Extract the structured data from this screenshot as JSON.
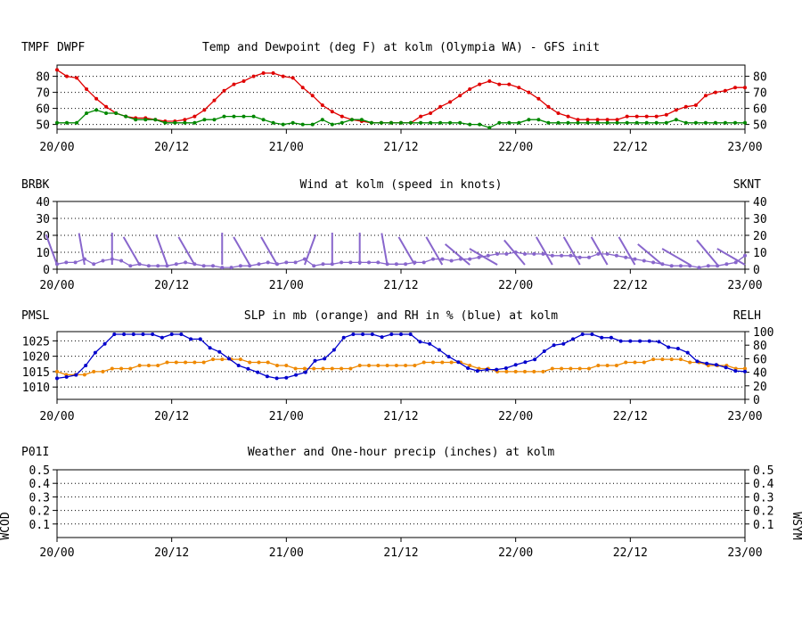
{
  "colors": {
    "temp": "#e00000",
    "dew": "#008800",
    "wind": "#8866cc",
    "pmsl": "#ee8800",
    "relh": "#0000cc",
    "precip": "#008800",
    "axis": "#000000"
  },
  "time_ticks": [
    "20/00",
    "20/12",
    "21/00",
    "21/12",
    "22/00",
    "22/12",
    "23/00"
  ],
  "chart_data": [
    {
      "type": "line",
      "title": "Temp and Dewpoint (deg F) at kolm  (Olympia WA) - GFS init",
      "left_labels": [
        "TMPF",
        "DWPF"
      ],
      "yticks": [
        50,
        60,
        70,
        80
      ],
      "ylim": [
        47,
        87
      ],
      "grid_y": [
        50,
        60,
        70,
        80
      ],
      "series": [
        {
          "name": "TMPF",
          "color": "temp",
          "values": [
            84,
            80,
            79,
            72,
            66,
            61,
            57,
            55,
            54,
            54,
            53,
            52,
            52,
            53,
            55,
            59,
            65,
            71,
            75,
            77,
            80,
            82,
            82,
            80,
            79,
            73,
            68,
            62,
            58,
            55,
            53,
            52,
            51,
            51,
            51,
            51,
            51,
            55,
            57,
            61,
            64,
            68,
            72,
            75,
            77,
            75,
            75,
            73,
            70,
            66,
            61,
            57,
            55,
            53,
            53,
            53,
            53,
            53,
            55,
            55,
            55,
            55,
            56,
            59,
            61,
            62,
            68,
            70,
            71,
            73,
            73
          ]
        },
        {
          "name": "DWPF",
          "color": "dew",
          "values": [
            51,
            51,
            51,
            57,
            59,
            57,
            57,
            55,
            53,
            53,
            53,
            51,
            51,
            51,
            51,
            53,
            53,
            55,
            55,
            55,
            55,
            53,
            51,
            50,
            51,
            50,
            50,
            53,
            50,
            51,
            53,
            53,
            51,
            51,
            51,
            51,
            51,
            51,
            51,
            51,
            51,
            51,
            50,
            50,
            48,
            51,
            51,
            51,
            53,
            53,
            51,
            51,
            51,
            51,
            51,
            51,
            51,
            51,
            51,
            51,
            51,
            51,
            51,
            53,
            51,
            51,
            51,
            51,
            51,
            51,
            51
          ]
        }
      ]
    },
    {
      "type": "line",
      "title": "Wind at  kolm  (speed in knots)",
      "left_labels": [
        "BRBK"
      ],
      "right_label": "SKNT",
      "yticks": [
        0,
        10,
        20,
        30,
        40
      ],
      "ylim": [
        0,
        40
      ],
      "grid_y": [
        10,
        20,
        30
      ],
      "series": [
        {
          "name": "SKNT",
          "color": "wind",
          "values": [
            3,
            4,
            4,
            6,
            3,
            5,
            6,
            5,
            2,
            3,
            2,
            2,
            2,
            3,
            4,
            3,
            2,
            2,
            1,
            1,
            2,
            2,
            3,
            4,
            3,
            4,
            4,
            6,
            2,
            3,
            3,
            4,
            4,
            4,
            4,
            4,
            3,
            3,
            3,
            4,
            4,
            6,
            6,
            5,
            6,
            6,
            7,
            8,
            9,
            9,
            10,
            9,
            9,
            9,
            8,
            8,
            8,
            7,
            7,
            9,
            9,
            8,
            7,
            6,
            5,
            4,
            3,
            2,
            2,
            2,
            1,
            2,
            2,
            3,
            4,
            8
          ]
        }
      ],
      "barbs": [
        {
          "i": 0,
          "dir": 200,
          "spd": 10
        },
        {
          "i": 3,
          "dir": 190,
          "spd": 10
        },
        {
          "i": 6,
          "dir": 180,
          "spd": 10
        },
        {
          "i": 9,
          "dir": 210,
          "spd": 10
        },
        {
          "i": 12,
          "dir": 200,
          "spd": 10
        },
        {
          "i": 15,
          "dir": 210,
          "spd": 10
        },
        {
          "i": 18,
          "dir": 180,
          "spd": 10
        },
        {
          "i": 21,
          "dir": 210,
          "spd": 10
        },
        {
          "i": 24,
          "dir": 210,
          "spd": 10
        },
        {
          "i": 27,
          "dir": 160,
          "spd": 10
        },
        {
          "i": 30,
          "dir": 180,
          "spd": 10
        },
        {
          "i": 33,
          "dir": 180,
          "spd": 10
        },
        {
          "i": 36,
          "dir": 190,
          "spd": 10
        },
        {
          "i": 39,
          "dir": 210,
          "spd": 10
        },
        {
          "i": 42,
          "dir": 210,
          "spd": 10
        },
        {
          "i": 45,
          "dir": 230,
          "spd": 10
        },
        {
          "i": 48,
          "dir": 240,
          "spd": 10
        },
        {
          "i": 51,
          "dir": 220,
          "spd": 10
        },
        {
          "i": 54,
          "dir": 210,
          "spd": 10
        },
        {
          "i": 57,
          "dir": 210,
          "spd": 10
        },
        {
          "i": 60,
          "dir": 210,
          "spd": 10
        },
        {
          "i": 63,
          "dir": 210,
          "spd": 10
        },
        {
          "i": 66,
          "dir": 230,
          "spd": 10
        },
        {
          "i": 69,
          "dir": 300,
          "spd": 10
        },
        {
          "i": 72,
          "dir": 320,
          "spd": 10
        },
        {
          "i": 75,
          "dir": 300,
          "spd": 10
        }
      ]
    },
    {
      "type": "line",
      "title": "SLP in mb (orange) and RH in % (blue) at  kolm",
      "left_labels": [
        "PMSL"
      ],
      "right_label": "RELH",
      "yticks_left": [
        1010,
        1015,
        1020,
        1025
      ],
      "ylim_left": [
        1006,
        1028
      ],
      "yticks_right": [
        0,
        20,
        40,
        60,
        80,
        100
      ],
      "ylim_right": [
        0,
        100
      ],
      "grid_y": [
        1010,
        1015,
        1020,
        1025
      ],
      "series": [
        {
          "name": "PMSL",
          "axis": "left",
          "color": "pmsl",
          "values": [
            1015,
            1014,
            1014,
            1014,
            1015,
            1015,
            1016,
            1016,
            1016,
            1017,
            1017,
            1017,
            1018,
            1018,
            1018,
            1018,
            1018,
            1019,
            1019,
            1019,
            1019,
            1018,
            1018,
            1018,
            1017,
            1017,
            1016,
            1016,
            1016,
            1016,
            1016,
            1016,
            1016,
            1017,
            1017,
            1017,
            1017,
            1017,
            1017,
            1017,
            1018,
            1018,
            1018,
            1018,
            1018,
            1017,
            1016,
            1016,
            1015,
            1015,
            1015,
            1015,
            1015,
            1015,
            1016,
            1016,
            1016,
            1016,
            1016,
            1017,
            1017,
            1017,
            1018,
            1018,
            1018,
            1019,
            1019,
            1019,
            1019,
            1018,
            1018,
            1017,
            1017,
            1017,
            1016,
            1016
          ]
        },
        {
          "name": "RELH",
          "axis": "right",
          "color": "relh",
          "values": [
            31,
            33,
            36,
            50,
            69,
            82,
            96,
            96,
            96,
            96,
            96,
            91,
            96,
            96,
            89,
            89,
            76,
            70,
            60,
            50,
            45,
            40,
            34,
            31,
            32,
            36,
            40,
            57,
            60,
            73,
            91,
            96,
            96,
            96,
            92,
            96,
            96,
            96,
            85,
            82,
            73,
            63,
            55,
            46,
            42,
            44,
            44,
            46,
            51,
            55,
            59,
            71,
            80,
            82,
            89,
            96,
            96,
            91,
            91,
            86,
            86,
            86,
            86,
            85,
            77,
            75,
            69,
            56,
            53,
            51,
            47,
            42,
            41
          ]
        }
      ]
    },
    {
      "type": "line",
      "title": "Weather and One-hour precip (inches) at  kolm",
      "left_labels": [
        "P01I"
      ],
      "left_side_label": "WCOD",
      "right_side_label": "WSYM",
      "yticks": [
        0.1,
        0.2,
        0.3,
        0.4,
        0.5
      ],
      "ytick_labels": [
        "0.1",
        "0.2",
        "0.3",
        "0.4",
        "0.5"
      ],
      "ylim": [
        0,
        0.5
      ],
      "grid_y": [
        0.1,
        0.2,
        0.3,
        0.4
      ],
      "series": [
        {
          "name": "P01I",
          "color": "precip",
          "values": []
        }
      ]
    }
  ]
}
